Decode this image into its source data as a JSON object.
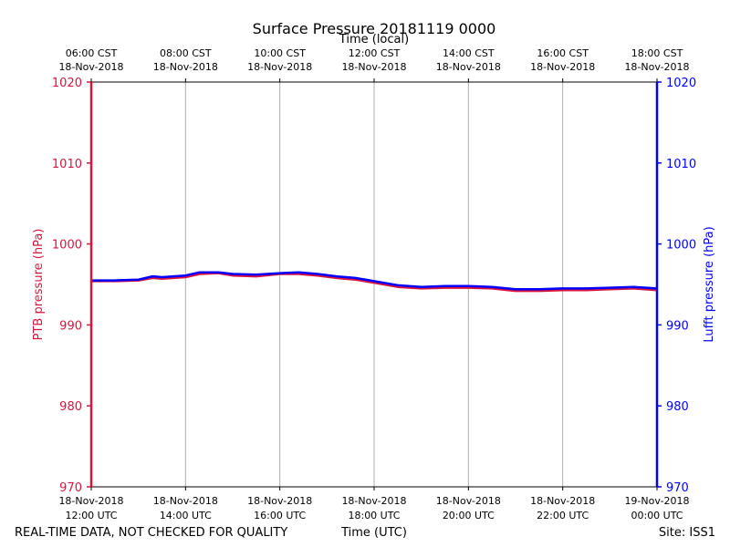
{
  "chart_data": {
    "type": "line",
    "title": "Surface Pressure 20181119 0000",
    "top_axis_label": "Time (local)",
    "xlabel": "Time (UTC)",
    "ylabel_left": "PTB pressure (hPa)",
    "ylabel_right": "Lufft pressure (hPa)",
    "ylim": [
      970,
      1020
    ],
    "yticks": [
      970,
      980,
      990,
      1000,
      1010,
      1020
    ],
    "x_hours": [
      12,
      14,
      16,
      18,
      20,
      22,
      24
    ],
    "xlim_hours": [
      12,
      24
    ],
    "grid": "vertical",
    "bottom_ticks": [
      {
        "date": "18-Nov-2018",
        "time": "12:00 UTC"
      },
      {
        "date": "18-Nov-2018",
        "time": "14:00 UTC"
      },
      {
        "date": "18-Nov-2018",
        "time": "16:00 UTC"
      },
      {
        "date": "18-Nov-2018",
        "time": "18:00 UTC"
      },
      {
        "date": "18-Nov-2018",
        "time": "20:00 UTC"
      },
      {
        "date": "18-Nov-2018",
        "time": "22:00 UTC"
      },
      {
        "date": "19-Nov-2018",
        "time": "00:00 UTC"
      }
    ],
    "top_ticks": [
      {
        "time": "06:00 CST",
        "date": "18-Nov-2018"
      },
      {
        "time": "08:00 CST",
        "date": "18-Nov-2018"
      },
      {
        "time": "10:00 CST",
        "date": "18-Nov-2018"
      },
      {
        "time": "12:00 CST",
        "date": "18-Nov-2018"
      },
      {
        "time": "14:00 CST",
        "date": "18-Nov-2018"
      },
      {
        "time": "16:00 CST",
        "date": "18-Nov-2018"
      },
      {
        "time": "18:00 CST",
        "date": "18-Nov-2018"
      }
    ],
    "series": [
      {
        "name": "PTB pressure",
        "color": "#dc143c",
        "axis": "left",
        "x": [
          12.0,
          12.5,
          13.0,
          13.3,
          13.5,
          14.0,
          14.3,
          14.7,
          15.0,
          15.5,
          16.0,
          16.4,
          16.8,
          17.2,
          17.6,
          18.0,
          18.5,
          19.0,
          19.5,
          20.0,
          20.5,
          21.0,
          21.5,
          22.0,
          22.5,
          23.0,
          23.5,
          24.0
        ],
        "values": [
          995.4,
          995.4,
          995.5,
          995.8,
          995.7,
          995.9,
          996.3,
          996.4,
          996.1,
          996.0,
          996.3,
          996.3,
          996.1,
          995.8,
          995.6,
          995.2,
          994.7,
          994.5,
          994.6,
          994.6,
          994.5,
          994.2,
          994.2,
          994.3,
          994.3,
          994.4,
          994.5,
          994.3
        ]
      },
      {
        "name": "Lufft pressure",
        "color": "#0000ff",
        "axis": "right",
        "x": [
          12.0,
          12.5,
          13.0,
          13.3,
          13.5,
          14.0,
          14.3,
          14.7,
          15.0,
          15.5,
          16.0,
          16.4,
          16.8,
          17.2,
          17.6,
          18.0,
          18.5,
          19.0,
          19.5,
          20.0,
          20.5,
          21.0,
          21.5,
          22.0,
          22.5,
          23.0,
          23.5,
          24.0
        ],
        "values": [
          995.5,
          995.5,
          995.6,
          996.0,
          995.9,
          996.1,
          996.5,
          996.5,
          996.3,
          996.2,
          996.4,
          996.5,
          996.3,
          996.0,
          995.8,
          995.4,
          994.9,
          994.7,
          994.8,
          994.8,
          994.7,
          994.4,
          994.4,
          994.5,
          994.5,
          994.6,
          994.7,
          994.5
        ]
      }
    ]
  },
  "footer": {
    "left_note": "REAL-TIME DATA, NOT CHECKED FOR QUALITY",
    "site": "Site: ISS1"
  },
  "colors": {
    "left_axis": "#dc143c",
    "right_axis": "#0000ff",
    "grid": "#b0b0b0"
  }
}
